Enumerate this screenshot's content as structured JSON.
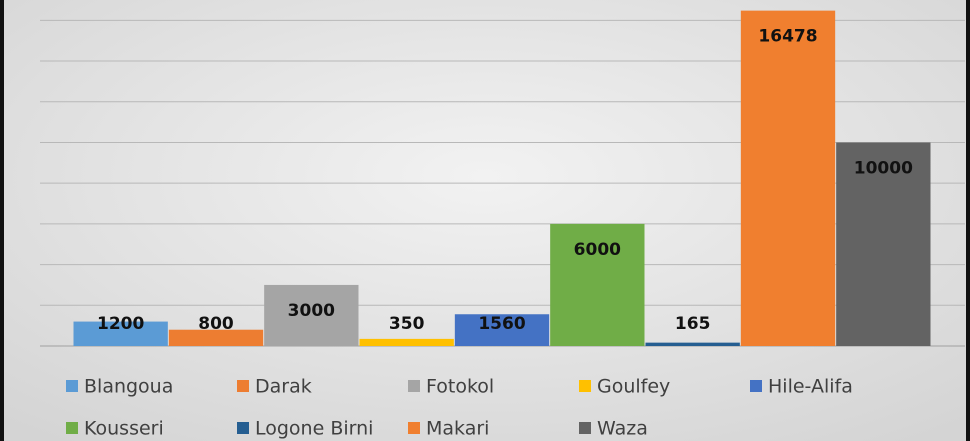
{
  "chart_data": {
    "type": "bar",
    "categories": [
      "Blangoua",
      "Darak",
      "Fotokol",
      "Goulfey",
      "Hile-Alifa",
      "Kousseri",
      "Logone Birni",
      "Makari",
      "Waza"
    ],
    "values": [
      1200,
      800,
      3000,
      350,
      1560,
      6000,
      165,
      16478,
      10000
    ],
    "colors": [
      "#5b9bd5",
      "#ed7d31",
      "#a5a5a5",
      "#ffc000",
      "#4472c4",
      "#70ad47",
      "#255e91",
      "#f07f2f",
      "#636363"
    ],
    "ylim": [
      0,
      17000
    ],
    "yticks": [
      0,
      2000,
      4000,
      6000,
      8000,
      10000,
      12000,
      14000,
      16000
    ],
    "grid": true,
    "legend": "bottom"
  }
}
